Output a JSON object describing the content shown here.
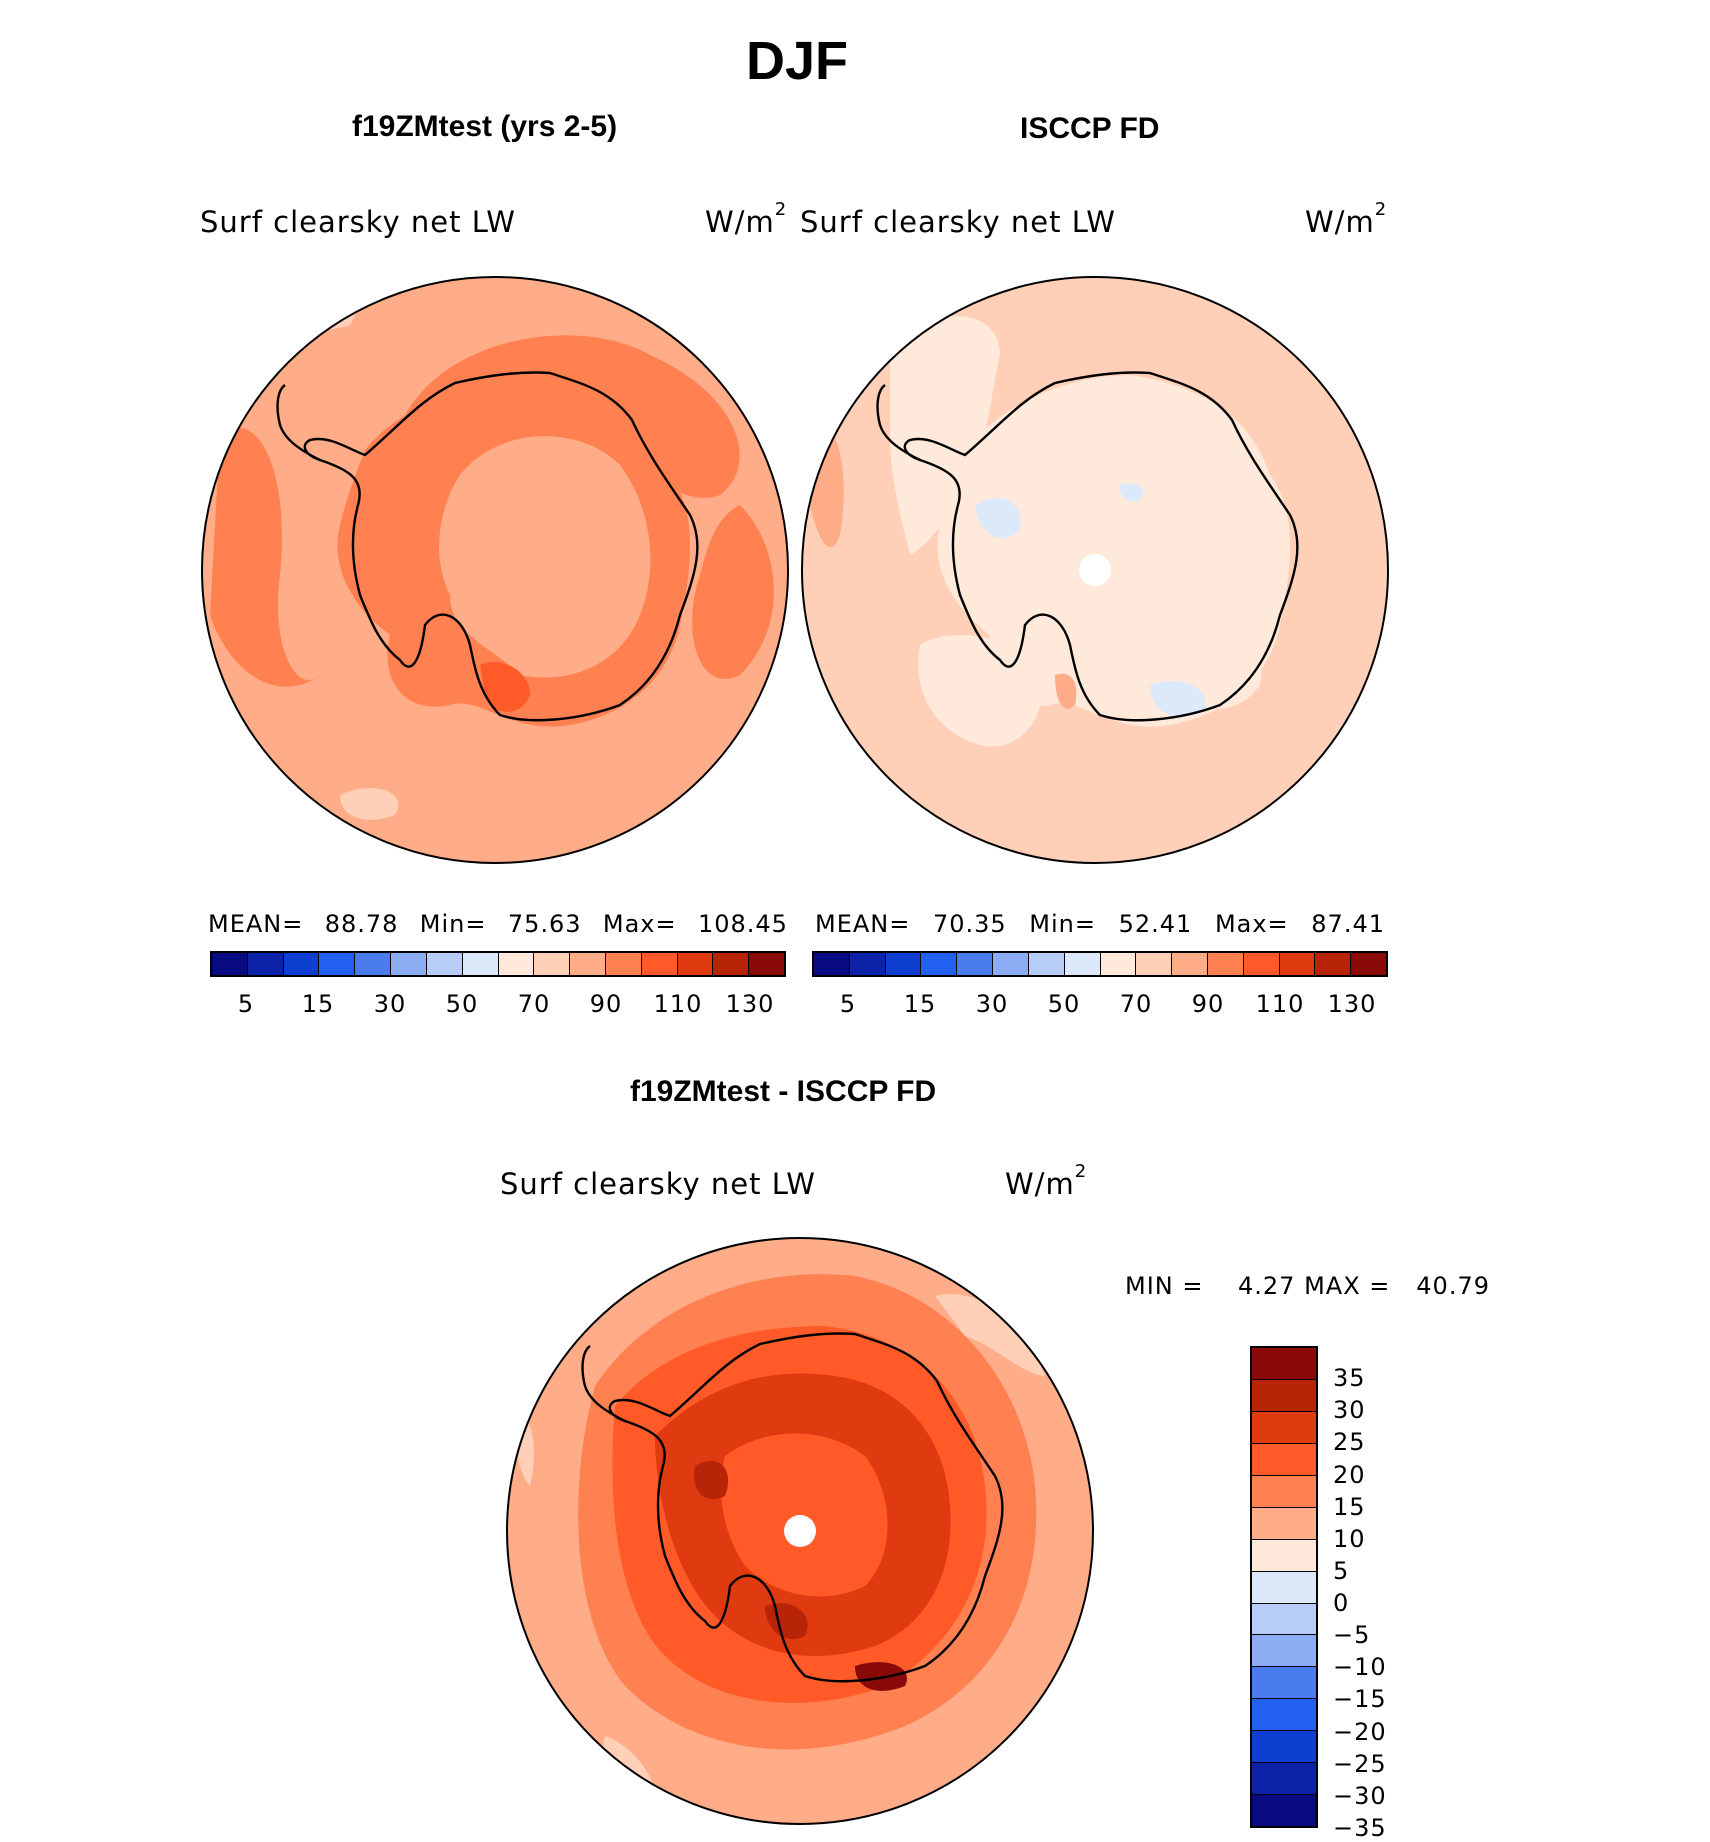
{
  "title": "DJF",
  "chart_data": [
    {
      "type": "heatmap",
      "projection": "south-polar-stereographic",
      "title": "f19ZMtest (yrs 2-5)",
      "variable": "Surf clearsky net LW",
      "units": "W/m",
      "units_sup": "2",
      "stats": {
        "mean_label": "MEAN=",
        "mean": "88.78",
        "min_label": "Min=",
        "min": "75.63",
        "max_label": "Max=",
        "max": "108.45"
      },
      "field_levels": {
        "open_ocean": 90,
        "ocean_high": 100,
        "interior": 90,
        "coast_ring": 100,
        "ross_peak": 110,
        "nw_patch": 80
      }
    },
    {
      "type": "heatmap",
      "projection": "south-polar-stereographic",
      "title": "ISCCP FD",
      "variable": "Surf clearsky net LW",
      "units": "W/m",
      "units_sup": "2",
      "stats": {
        "mean_label": "MEAN=",
        "mean": "70.35",
        "min_label": "Min=",
        "min": "52.41",
        "max_label": "Max=",
        "max": "87.41"
      },
      "field_levels": {
        "open_ocean": 80,
        "low_band": 70,
        "interior": 70,
        "blue_patches": 60,
        "ocean_high": 90
      }
    },
    {
      "type": "heatmap",
      "projection": "south-polar-stereographic",
      "title": "f19ZMtest - ISCCP FD",
      "variable": "Surf clearsky net LW",
      "units": "W/m",
      "units_sup": "2",
      "stats": {
        "min_label": "MIN =",
        "min": "4.27",
        "max_label": "MAX =",
        "max": "40.79"
      },
      "field_levels": {
        "outer": 10,
        "mid": 15,
        "inner": 20,
        "interior": 25,
        "peaks": 30,
        "max_peak": 35
      }
    }
  ],
  "colorbar_main": {
    "ticks": [
      "5",
      "15",
      "30",
      "50",
      "70",
      "90",
      "110",
      "130"
    ],
    "colors": [
      "#0a0a80",
      "#0c22a8",
      "#0d3fd0",
      "#2160f0",
      "#4a7cf0",
      "#8cacf4",
      "#b8ccf8",
      "#dbe9fb",
      "#ffe9db",
      "#ffcfb8",
      "#ffac88",
      "#ff8050",
      "#ff5a28",
      "#e03a10",
      "#b82408",
      "#8a0a0a"
    ]
  },
  "colorbar_diff": {
    "ticks": [
      "35",
      "30",
      "25",
      "20",
      "15",
      "10",
      "5",
      "0",
      "−5",
      "−10",
      "−15",
      "−20",
      "−25",
      "−30",
      "−35"
    ],
    "colors": [
      "#8a0a0a",
      "#b82408",
      "#e03a10",
      "#ff5a28",
      "#ff8050",
      "#ffac88",
      "#ffe9db",
      "#dbe9fb",
      "#b8ccf8",
      "#8cacf4",
      "#4a7cf0",
      "#2160f0",
      "#0d3fd0",
      "#0c22a8",
      "#0a0a80"
    ]
  }
}
